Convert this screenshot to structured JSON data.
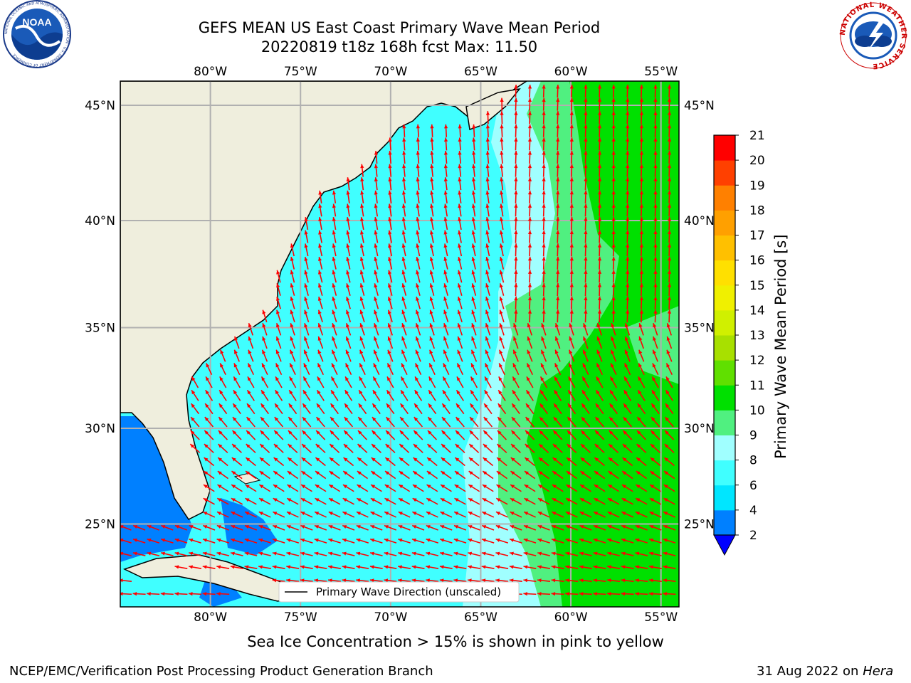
{
  "header": {
    "title_line1": "GEFS MEAN US East Coast Primary Wave Mean Period",
    "title_line2": "20220819 t18z 168h fcst   Max: 11.50"
  },
  "logos": {
    "left": "noaa-logo",
    "left_text": "NOAA",
    "left_ring_text": "NATIONAL OCEANIC AND ATMOSPHERIC ADMINISTRATION · U.S. DEPARTMENT OF COMMERCE",
    "right": "nws-logo",
    "right_ring_text": "NATIONAL WEATHER SERVICE"
  },
  "map": {
    "lon_labels": [
      "80°W",
      "75°W",
      "70°W",
      "65°W",
      "60°W",
      "55°W"
    ],
    "lat_labels": [
      "45°N",
      "40°N",
      "35°N",
      "30°N",
      "25°N"
    ],
    "lon_range": [
      -85,
      -54
    ],
    "lat_range": [
      20.5,
      46
    ],
    "legend_text": "Primary Wave Direction (unscaled)",
    "land_color": "#efeedd",
    "arrow_color": "#ff0000",
    "grid": true
  },
  "colorbar": {
    "label": "Primary Wave Mean Period [s]",
    "ticks": [
      "2",
      "4",
      "6",
      "8",
      "9",
      "10",
      "11",
      "12",
      "13",
      "14",
      "15",
      "16",
      "17",
      "18",
      "19",
      "20",
      "21"
    ],
    "colors": [
      "#0080ff",
      "#00e6ff",
      "#40ffff",
      "#a0ffff",
      "#50f080",
      "#00e000",
      "#60e000",
      "#a8e000",
      "#d0f000",
      "#f0f000",
      "#ffe000",
      "#ffc000",
      "#ffa000",
      "#ff8000",
      "#ff4000",
      "#ff0000"
    ],
    "under_color": "#0000ff"
  },
  "subtitle": "Sea Ice Concentration > 15% is shown in pink to yellow",
  "footer": {
    "left": "NCEP/EMC/Verification Post Processing Product Generation Branch",
    "date": "31 Aug 2022 on",
    "machine": "Hera"
  }
}
